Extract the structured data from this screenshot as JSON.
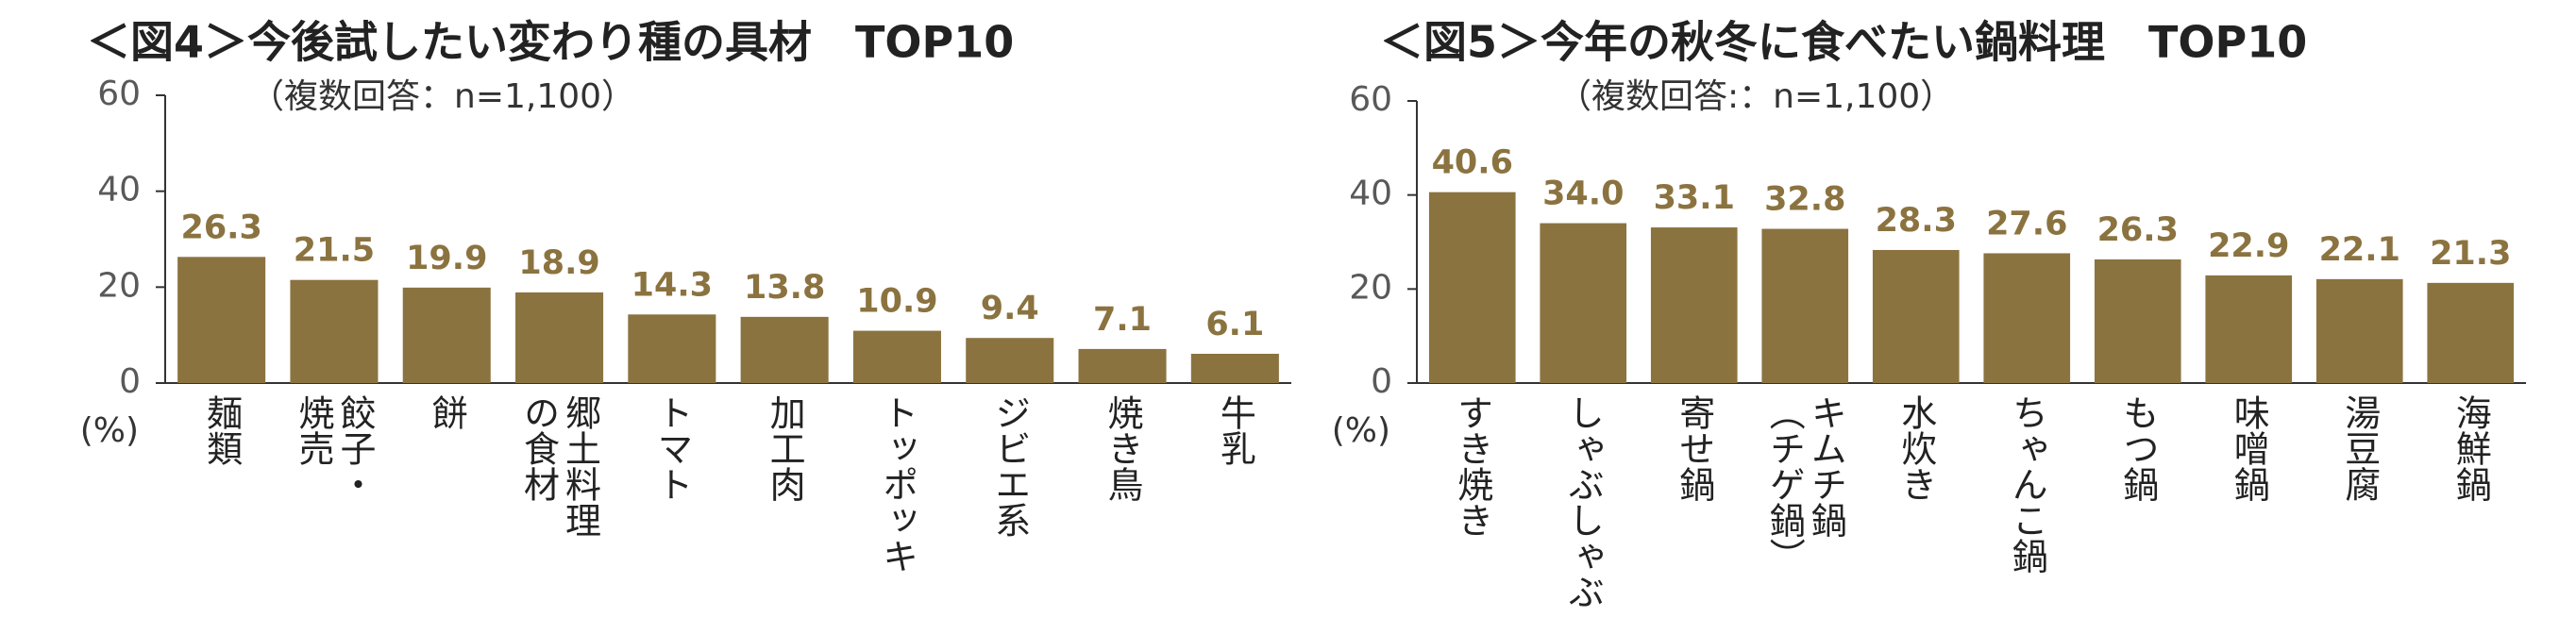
{
  "chart_data": [
    {
      "type": "bar",
      "title": "＜図4＞今後試したい変わり種の具材　TOP10",
      "subtitle": "（複数回答：n=1,100）",
      "y_unit": "(%)",
      "categories": [
        "麺類",
        "餃子・\n焼売",
        "餅",
        "郷土料理\nの食材",
        "トマト",
        "加工肉",
        "トッポッキ",
        "ジビエ系",
        "焼き鳥",
        "牛乳"
      ],
      "values": [
        26.3,
        21.5,
        19.9,
        18.9,
        14.3,
        13.8,
        10.9,
        9.4,
        7.1,
        6.1
      ],
      "color": "#8b7340",
      "ylim": [
        0,
        60
      ],
      "yticks": [
        0,
        20,
        40,
        60
      ]
    },
    {
      "type": "bar",
      "title": "＜図5＞今年の秋冬に食べたい鍋料理　TOP10",
      "subtitle": "（複数回答:：n=1,100）",
      "y_unit": "(%)",
      "categories": [
        "すき焼き",
        "しゃぶしゃぶ",
        "寄せ鍋",
        "キムチ鍋\n（チゲ鍋）",
        "水炊き",
        "ちゃんこ鍋",
        "もつ鍋",
        "味噌鍋",
        "湯豆腐",
        "海鮮鍋"
      ],
      "values": [
        40.6,
        34.0,
        33.1,
        32.8,
        28.3,
        27.6,
        26.3,
        22.9,
        22.1,
        21.3
      ],
      "color": "#8b7340",
      "ylim": [
        0,
        60
      ],
      "yticks": [
        0,
        20,
        40,
        60
      ]
    }
  ]
}
